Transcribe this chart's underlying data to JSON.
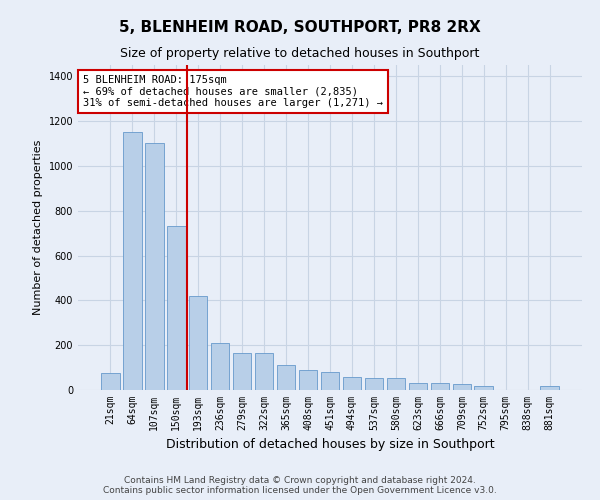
{
  "title1": "5, BLENHEIM ROAD, SOUTHPORT, PR8 2RX",
  "title2": "Size of property relative to detached houses in Southport",
  "xlabel": "Distribution of detached houses by size in Southport",
  "ylabel": "Number of detached properties",
  "footer1": "Contains HM Land Registry data © Crown copyright and database right 2024.",
  "footer2": "Contains public sector information licensed under the Open Government Licence v3.0.",
  "categories": [
    "21sqm",
    "64sqm",
    "107sqm",
    "150sqm",
    "193sqm",
    "236sqm",
    "279sqm",
    "322sqm",
    "365sqm",
    "408sqm",
    "451sqm",
    "494sqm",
    "537sqm",
    "580sqm",
    "623sqm",
    "666sqm",
    "709sqm",
    "752sqm",
    "795sqm",
    "838sqm",
    "881sqm"
  ],
  "values": [
    75,
    1150,
    1100,
    730,
    420,
    210,
    165,
    165,
    110,
    90,
    80,
    60,
    55,
    55,
    30,
    30,
    25,
    20,
    0,
    0,
    20
  ],
  "bar_color": "#b8cfe8",
  "bar_edge_color": "#6699cc",
  "grid_color": "#c8d4e4",
  "background_color": "#e8eef8",
  "vline_x_index": 3.5,
  "vline_color": "#cc0000",
  "annotation_text": "5 BLENHEIM ROAD: 175sqm\n← 69% of detached houses are smaller (2,835)\n31% of semi-detached houses are larger (1,271) →",
  "annotation_box_color": "#ffffff",
  "annotation_box_edge": "#cc0000",
  "ylim": [
    0,
    1450
  ],
  "yticks": [
    0,
    200,
    400,
    600,
    800,
    1000,
    1200,
    1400
  ],
  "title1_fontsize": 11,
  "title2_fontsize": 9,
  "ylabel_fontsize": 8,
  "xlabel_fontsize": 9,
  "tick_fontsize": 7,
  "footer_fontsize": 6.5
}
